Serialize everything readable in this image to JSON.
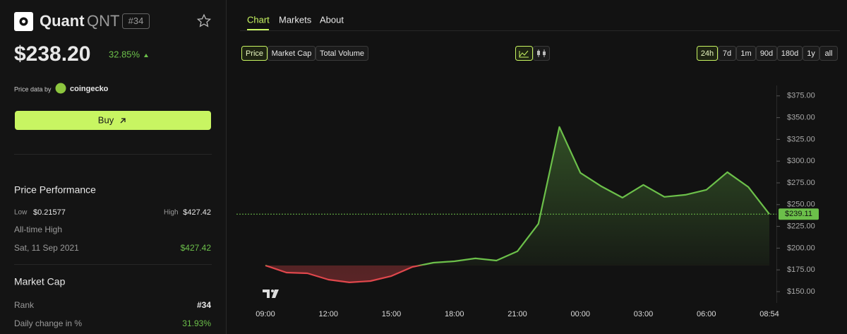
{
  "header": {
    "name": "Quant",
    "symbol": "QNT",
    "rank": "#34",
    "price": "$238.20",
    "change": "32.85%",
    "source_prefix": "Price data by",
    "source": "coingecko",
    "buy": "Buy"
  },
  "performance": {
    "title": "Price Performance",
    "low_label": "Low",
    "low": "$0.21577",
    "high_label": "High",
    "high": "$427.42",
    "ath_label": "All-time High",
    "ath_date": "Sat, 11 Sep 2021",
    "ath_value": "$427.42"
  },
  "market_cap": {
    "title": "Market Cap",
    "rank_label": "Rank",
    "rank": "#34",
    "daily_label": "Daily change in %",
    "daily": "31.93%"
  },
  "tabs": [
    "Chart",
    "Markets",
    "About"
  ],
  "metrics": [
    "Price",
    "Market Cap",
    "Total Volume"
  ],
  "ranges": [
    "24h",
    "7d",
    "1m",
    "90d",
    "180d",
    "1y",
    "all"
  ],
  "chart_data": {
    "type": "line",
    "categories": [
      "09:00",
      null,
      null,
      "12:00",
      null,
      null,
      "15:00",
      null,
      null,
      "18:00",
      null,
      null,
      "21:00",
      null,
      null,
      "00:00",
      null,
      null,
      "03:00",
      null,
      null,
      "06:00",
      null,
      null,
      "08:54"
    ],
    "series": [
      {
        "name": "Price",
        "color": "#6cc04a",
        "down_color": "#e0474c",
        "values": [
          180.1,
          171.9,
          171.1,
          163.8,
          160.6,
          162.2,
          167.9,
          178.4,
          183.3,
          184.9,
          188.2,
          185.7,
          196.3,
          228,
          339.3,
          286.5,
          271,
          258,
          272.7,
          258.9,
          261.3,
          267,
          287.3,
          270.2,
          239.11
        ],
        "value_labels": [
          null,
          null,
          null,
          null,
          null,
          null,
          null,
          null,
          null,
          null,
          null,
          null,
          null,
          null,
          null,
          null,
          null,
          null,
          null,
          null,
          null,
          null,
          null,
          null,
          "$239.11"
        ]
      }
    ],
    "ylim": [
      137,
      387
    ],
    "yticks": [
      {
        "value": 150,
        "label": "$150.00"
      },
      {
        "value": 175,
        "label": "$175.00"
      },
      {
        "value": 200,
        "label": "$200.00"
      },
      {
        "value": 225,
        "label": "$225.00"
      },
      {
        "value": 250,
        "label": "$250.00"
      },
      {
        "value": 275,
        "label": "$275.00"
      },
      {
        "value": 300,
        "label": "$300.00"
      },
      {
        "value": 325,
        "label": "$325.00"
      },
      {
        "value": 350,
        "label": "$350.00"
      },
      {
        "value": 375,
        "label": "$375.00"
      }
    ]
  }
}
